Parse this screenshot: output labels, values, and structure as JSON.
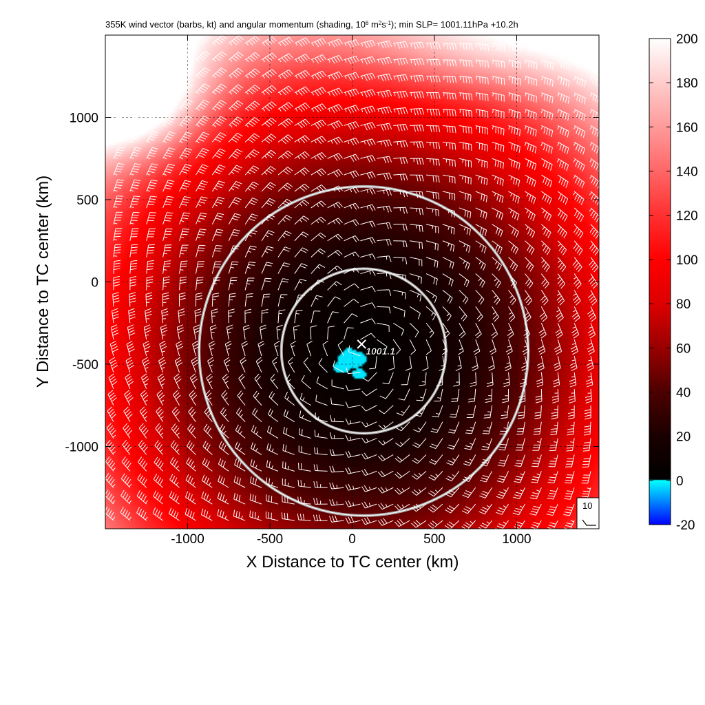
{
  "chart_data": {
    "type": "heatmap",
    "title": "355K wind vector (barbs, kt) and angular momentum (shading, 10",
    "title_sup1": "6",
    "title_mid": " m",
    "title_sup2": "2",
    "title_mid2": "s",
    "title_sup3": "-1",
    "title_end": "); min SLP= 1001.11hPa  +10.2h",
    "xlabel": "X Distance to TC center (km)",
    "ylabel": "Y Distance to TC center (km)",
    "xlim": [
      -1500,
      1500
    ],
    "ylim": [
      -1500,
      1500
    ],
    "xticks": [
      -1000,
      -500,
      0,
      500,
      1000
    ],
    "yticks": [
      -1000,
      -500,
      0,
      500,
      1000
    ],
    "grid": true,
    "colorbar": {
      "range": [
        -20,
        200
      ],
      "ticks": [
        -20,
        0,
        20,
        40,
        60,
        80,
        100,
        120,
        140,
        160,
        180,
        200
      ],
      "stops": [
        {
          "value": -20,
          "color": "#0000ff"
        },
        {
          "value": 0,
          "color": "#00ffff"
        },
        {
          "value": 0.5,
          "color": "#000000"
        },
        {
          "value": 20,
          "color": "#1a0000"
        },
        {
          "value": 40,
          "color": "#4d0000"
        },
        {
          "value": 60,
          "color": "#990000"
        },
        {
          "value": 80,
          "color": "#dd0000"
        },
        {
          "value": 100,
          "color": "#ff0000"
        },
        {
          "value": 120,
          "color": "#ff3030"
        },
        {
          "value": 140,
          "color": "#ff6666"
        },
        {
          "value": 160,
          "color": "#ff9a9a"
        },
        {
          "value": 180,
          "color": "#ffcccc"
        },
        {
          "value": 200,
          "color": "#ffffff"
        }
      ]
    },
    "storm_center": {
      "x": 70,
      "y": -420
    },
    "min_slp_label": "1001.1",
    "circles_radius_km": [
      500,
      1000
    ],
    "barb_reference": {
      "label": "10",
      "units": "kt"
    },
    "wind_field": {
      "grid_spacing_km": 100,
      "speed_range_kt": [
        5,
        45
      ],
      "flow": "cyclonic"
    }
  }
}
